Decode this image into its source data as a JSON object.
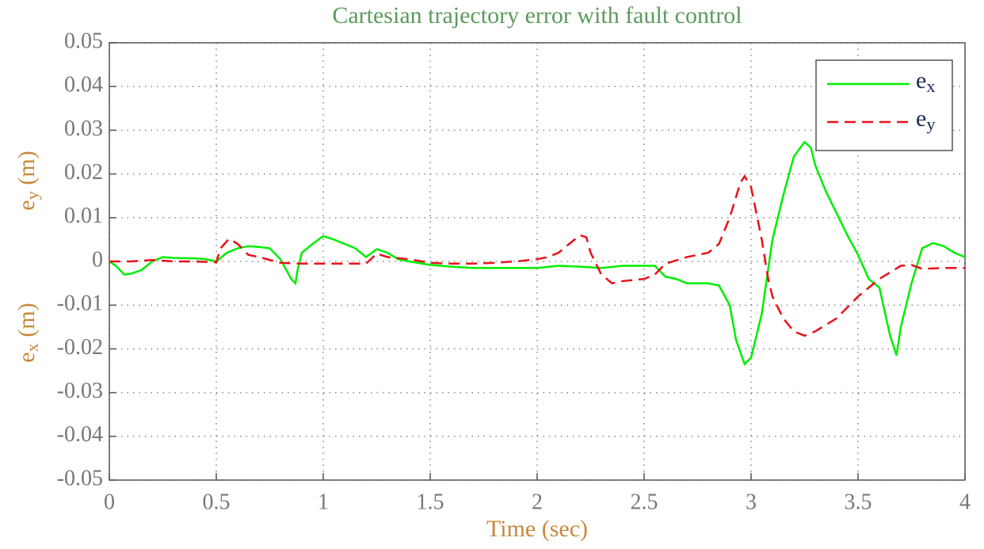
{
  "chart_data": {
    "type": "line",
    "title": "Cartesian trajectory error with fault control",
    "x_label": "Time (sec)",
    "y_labels": [
      "ex (m)",
      "ey (m)"
    ],
    "xlim": [
      0,
      4
    ],
    "xticks": [
      0,
      0.5,
      1,
      1.5,
      2,
      2.5,
      3,
      3.5,
      4
    ],
    "ylim": [
      -0.05,
      0.05
    ],
    "yticks": [
      -0.05,
      -0.04,
      -0.03,
      -0.02,
      -0.01,
      0,
      0.01,
      0.02,
      0.03,
      0.04,
      0.05
    ],
    "grid": true,
    "legend": "upper right",
    "series": [
      {
        "name": "ex",
        "color": "#00ee00",
        "dash": "solid",
        "x": [
          0,
          0.03,
          0.07,
          0.1,
          0.15,
          0.2,
          0.25,
          0.3,
          0.4,
          0.45,
          0.5,
          0.55,
          0.6,
          0.65,
          0.7,
          0.75,
          0.8,
          0.85,
          0.87,
          0.88,
          0.9,
          0.95,
          1.0,
          1.05,
          1.1,
          1.15,
          1.2,
          1.25,
          1.3,
          1.35,
          1.4,
          1.5,
          1.6,
          1.7,
          1.8,
          1.9,
          2.0,
          2.1,
          2.2,
          2.3,
          2.4,
          2.5,
          2.55,
          2.6,
          2.65,
          2.7,
          2.8,
          2.85,
          2.9,
          2.93,
          2.97,
          3.0,
          3.05,
          3.1,
          3.15,
          3.2,
          3.25,
          3.28,
          3.3,
          3.35,
          3.4,
          3.45,
          3.5,
          3.55,
          3.6,
          3.65,
          3.68,
          3.7,
          3.75,
          3.8,
          3.85,
          3.9,
          3.95,
          4.0
        ],
        "values": [
          0,
          -0.001,
          -0.003,
          -0.0028,
          -0.002,
          0,
          0.001,
          0.0008,
          0.0007,
          0.0005,
          0,
          0.002,
          0.003,
          0.0035,
          0.0033,
          0.003,
          0.0005,
          -0.004,
          -0.005,
          -0.002,
          0.002,
          0.004,
          0.0058,
          0.005,
          0.004,
          0.003,
          0.001,
          0.0028,
          0.002,
          0.0005,
          0,
          -0.0008,
          -0.0012,
          -0.0015,
          -0.0015,
          -0.0015,
          -0.0015,
          -0.001,
          -0.0012,
          -0.0015,
          -0.001,
          -0.001,
          -0.001,
          -0.0035,
          -0.004,
          -0.005,
          -0.005,
          -0.0055,
          -0.01,
          -0.018,
          -0.0235,
          -0.022,
          -0.012,
          0.005,
          0.015,
          0.024,
          0.0273,
          0.026,
          0.022,
          0.016,
          0.011,
          0.006,
          0.0015,
          -0.004,
          -0.006,
          -0.017,
          -0.0215,
          -0.015,
          -0.005,
          0.003,
          0.0042,
          0.0035,
          0.002,
          0.001
        ]
      },
      {
        "name": "ey",
        "color": "#e8121a",
        "dash": "dashed",
        "x": [
          0,
          0.1,
          0.2,
          0.3,
          0.4,
          0.5,
          0.52,
          0.56,
          0.6,
          0.65,
          0.7,
          0.8,
          0.9,
          1.0,
          1.1,
          1.2,
          1.25,
          1.3,
          1.4,
          1.5,
          1.6,
          1.7,
          1.8,
          1.9,
          2.0,
          2.05,
          2.1,
          2.15,
          2.2,
          2.23,
          2.25,
          2.3,
          2.35,
          2.4,
          2.5,
          2.55,
          2.6,
          2.7,
          2.8,
          2.85,
          2.9,
          2.95,
          2.97,
          3.0,
          3.05,
          3.08,
          3.1,
          3.15,
          3.2,
          3.25,
          3.3,
          3.4,
          3.5,
          3.6,
          3.7,
          3.75,
          3.8,
          3.9,
          4.0
        ],
        "values": [
          0,
          0,
          0.0003,
          0,
          0,
          -0.0002,
          0.003,
          0.0052,
          0.004,
          0.0015,
          0.001,
          -0.0003,
          -0.0005,
          -0.0005,
          -0.0005,
          -0.0005,
          0.0018,
          0.001,
          0.0005,
          -0.0003,
          -0.0005,
          -0.0005,
          -0.0003,
          0,
          0.0005,
          0.001,
          0.002,
          0.004,
          0.006,
          0.0055,
          0.002,
          -0.003,
          -0.005,
          -0.0045,
          -0.004,
          -0.003,
          -0.0005,
          0.001,
          0.002,
          0.004,
          0.01,
          0.018,
          0.0195,
          0.017,
          0.005,
          -0.004,
          -0.008,
          -0.013,
          -0.016,
          -0.017,
          -0.016,
          -0.013,
          -0.008,
          -0.004,
          -0.001,
          -0.0008,
          -0.0017,
          -0.0015,
          -0.0015
        ]
      }
    ]
  }
}
